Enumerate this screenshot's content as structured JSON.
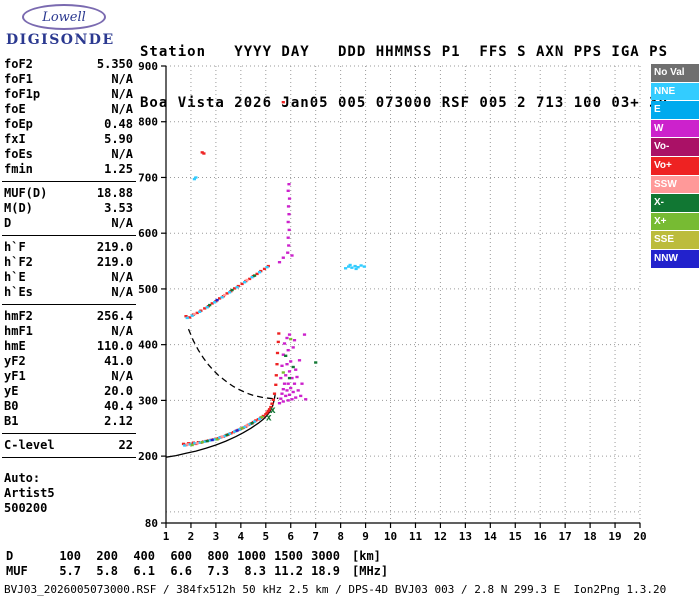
{
  "logo": {
    "brand": "Lowell",
    "product": "DIGISONDE"
  },
  "header": {
    "line1": "Station   YYYY DAY   DDD HHMMSS P1  FFS S AXN PPS IGA PS",
    "line2": "Boa Vista 2026 Jan05 005 073000 RSF 005 2 713 100 03+ 30"
  },
  "params": {
    "groups": [
      {
        "rows": [
          [
            "foF2",
            "5.350"
          ],
          [
            "foF1",
            "N/A"
          ],
          [
            "foF1p",
            "N/A"
          ],
          [
            "foE",
            "N/A"
          ],
          [
            "foEp",
            "0.48"
          ],
          [
            "fxI",
            "5.90"
          ],
          [
            "foEs",
            "N/A"
          ],
          [
            "fmin",
            "1.25"
          ]
        ]
      },
      {
        "rows": [
          [
            "MUF(D)",
            "18.88"
          ],
          [
            "M(D)",
            "3.53"
          ],
          [
            "D",
            "N/A"
          ]
        ]
      },
      {
        "rows": [
          [
            "h`F",
            "219.0"
          ],
          [
            "h`F2",
            "219.0"
          ],
          [
            "h`E",
            "N/A"
          ],
          [
            "h`Es",
            "N/A"
          ]
        ]
      },
      {
        "rows": [
          [
            "hmF2",
            "256.4"
          ],
          [
            "hmF1",
            "N/A"
          ],
          [
            "hmE",
            "110.0"
          ],
          [
            "yF2",
            "41.0"
          ],
          [
            "yF1",
            "N/A"
          ],
          [
            "yE",
            "20.0"
          ],
          [
            "B0",
            "40.4"
          ],
          [
            "B1",
            "2.12"
          ]
        ]
      },
      {
        "rows": [
          [
            "C-level",
            "22"
          ]
        ]
      },
      {
        "rows": [
          [
            "Auto:",
            ""
          ],
          [
            "Artist5",
            ""
          ],
          [
            "500200",
            ""
          ]
        ]
      }
    ]
  },
  "legend": [
    {
      "label": "No Val",
      "color": "#6f6f6f"
    },
    {
      "label": "NNE",
      "color": "#33ccff"
    },
    {
      "label": "E",
      "color": "#00aaee"
    },
    {
      "label": "W",
      "color": "#cc22cc"
    },
    {
      "label": "Vo-",
      "color": "#aa1166"
    },
    {
      "label": "Vo+",
      "color": "#ee2222"
    },
    {
      "label": "SSW",
      "color": "#ff9999"
    },
    {
      "label": "X-",
      "color": "#117733"
    },
    {
      "label": "X+",
      "color": "#77bb33"
    },
    {
      "label": "SSE",
      "color": "#bcbc3c"
    },
    {
      "label": "NNW",
      "color": "#2222cc"
    }
  ],
  "bottom_table": {
    "rows": [
      {
        "label": "D",
        "values": [
          "100",
          "200",
          "400",
          "600",
          "800",
          "1000",
          "1500",
          "3000"
        ],
        "unit": "[km]"
      },
      {
        "label": "MUF",
        "values": [
          "5.7",
          "5.8",
          "6.1",
          "6.6",
          "7.3",
          "8.3",
          "11.2",
          "18.9"
        ],
        "unit": "[MHz]"
      }
    ]
  },
  "footer": {
    "text": "BVJ03_2026005073000.RSF / 384fx512h 50 kHz 2.5 km / DPS-4D BVJ03 003 / 2.8 N 299.3 E  Ion2Png 1.3.20"
  },
  "chart_data": {
    "type": "scatter",
    "title": "Digisonde ionogram, Boa Vista, 2026 Jan05 073000",
    "xlabel": "[MHz]",
    "ylabel": "[km]",
    "xlim": [
      1,
      20
    ],
    "ylim": [
      80,
      900
    ],
    "xticks": [
      1,
      2,
      3,
      4,
      5,
      6,
      7,
      8,
      9,
      10,
      11,
      12,
      13,
      14,
      15,
      16,
      17,
      18,
      19,
      20
    ],
    "yticks": [
      80,
      200,
      300,
      400,
      500,
      600,
      700,
      800,
      900
    ],
    "ygrid": [
      100,
      200,
      300,
      400,
      500,
      600,
      700,
      800,
      900
    ],
    "grid": true,
    "legend_position": "right",
    "series": [
      {
        "name": "o-mode-echoes",
        "dir": "Vo+",
        "points": [
          [
            1.7,
            222
          ],
          [
            1.8,
            220
          ],
          [
            1.9,
            223
          ],
          [
            2.0,
            221
          ],
          [
            2.1,
            224
          ],
          [
            2.2,
            222
          ],
          [
            2.3,
            225
          ],
          [
            2.4,
            224
          ],
          [
            2.5,
            226
          ],
          [
            2.6,
            227
          ],
          [
            2.7,
            228
          ],
          [
            2.8,
            229
          ],
          [
            2.9,
            230
          ],
          [
            3.0,
            231
          ],
          [
            3.1,
            232
          ],
          [
            3.2,
            234
          ],
          [
            3.3,
            235
          ],
          [
            3.4,
            237
          ],
          [
            3.5,
            239
          ],
          [
            3.6,
            241
          ],
          [
            3.7,
            243
          ],
          [
            3.8,
            245
          ],
          [
            3.9,
            247
          ],
          [
            4.0,
            249
          ],
          [
            4.1,
            251
          ],
          [
            4.2,
            253
          ],
          [
            4.3,
            256
          ],
          [
            4.4,
            258
          ],
          [
            4.5,
            261
          ],
          [
            4.6,
            264
          ],
          [
            4.7,
            266
          ],
          [
            4.8,
            269
          ],
          [
            4.9,
            272
          ],
          [
            5.0,
            275
          ],
          [
            5.05,
            278
          ],
          [
            5.1,
            281
          ],
          [
            5.15,
            284
          ],
          [
            5.2,
            288
          ],
          [
            5.25,
            294
          ],
          [
            5.3,
            301
          ],
          [
            5.35,
            312
          ],
          [
            5.4,
            328
          ],
          [
            5.42,
            345
          ],
          [
            5.45,
            365
          ],
          [
            5.47,
            385
          ],
          [
            5.5,
            405
          ],
          [
            5.52,
            420
          ],
          [
            1.8,
            451
          ],
          [
            1.95,
            449
          ],
          [
            2.1,
            454
          ],
          [
            2.25,
            457
          ],
          [
            2.4,
            461
          ],
          [
            2.55,
            465
          ],
          [
            2.7,
            469
          ],
          [
            2.85,
            474
          ],
          [
            3.0,
            478
          ],
          [
            3.15,
            483
          ],
          [
            3.3,
            487
          ],
          [
            3.45,
            492
          ],
          [
            3.6,
            496
          ],
          [
            3.75,
            501
          ],
          [
            3.9,
            505
          ],
          [
            4.05,
            509
          ],
          [
            4.2,
            514
          ],
          [
            4.35,
            518
          ],
          [
            4.5,
            523
          ],
          [
            4.65,
            527
          ],
          [
            4.8,
            532
          ],
          [
            4.95,
            536
          ],
          [
            5.1,
            541
          ],
          [
            2.45,
            745
          ],
          [
            2.52,
            743
          ],
          [
            5.7,
            835
          ]
        ]
      },
      {
        "name": "nne-echoes",
        "dir": "NNE",
        "points": [
          [
            1.75,
            219
          ],
          [
            1.95,
            221
          ],
          [
            2.15,
            223
          ],
          [
            2.35,
            224
          ],
          [
            2.55,
            226
          ],
          [
            2.75,
            228
          ],
          [
            2.95,
            230
          ],
          [
            3.15,
            233
          ],
          [
            3.35,
            236
          ],
          [
            3.55,
            240
          ],
          [
            3.75,
            244
          ],
          [
            3.95,
            248
          ],
          [
            4.15,
            252
          ],
          [
            4.35,
            257
          ],
          [
            4.55,
            262
          ],
          [
            4.75,
            267
          ],
          [
            1.85,
            448
          ],
          [
            2.05,
            452
          ],
          [
            2.35,
            459
          ],
          [
            2.65,
            467
          ],
          [
            2.95,
            476
          ],
          [
            3.25,
            485
          ],
          [
            3.55,
            494
          ],
          [
            3.85,
            503
          ],
          [
            4.15,
            512
          ],
          [
            4.45,
            521
          ],
          [
            4.75,
            530
          ],
          [
            5.05,
            539
          ],
          [
            8.2,
            537
          ],
          [
            8.32,
            540
          ],
          [
            8.45,
            538
          ],
          [
            8.58,
            541
          ],
          [
            8.7,
            539
          ],
          [
            8.82,
            542
          ],
          [
            8.95,
            540
          ],
          [
            8.38,
            543
          ],
          [
            8.62,
            536
          ],
          [
            2.2,
            700
          ],
          [
            2.14,
            697
          ]
        ]
      },
      {
        "name": "spread-f-x-mode",
        "dir": "W",
        "points": [
          [
            5.55,
            295
          ],
          [
            5.6,
            303
          ],
          [
            5.6,
            340
          ],
          [
            5.65,
            312
          ],
          [
            5.65,
            362
          ],
          [
            5.7,
            298
          ],
          [
            5.7,
            320
          ],
          [
            5.7,
            382
          ],
          [
            5.75,
            330
          ],
          [
            5.75,
            402
          ],
          [
            5.8,
            308
          ],
          [
            5.8,
            345
          ],
          [
            5.85,
            318
          ],
          [
            5.85,
            365
          ],
          [
            5.85,
            412
          ],
          [
            5.9,
            300
          ],
          [
            5.9,
            330
          ],
          [
            5.9,
            390
          ],
          [
            5.95,
            310
          ],
          [
            5.95,
            352
          ],
          [
            5.95,
            418
          ],
          [
            6.0,
            322
          ],
          [
            6.0,
            370
          ],
          [
            6.05,
            302
          ],
          [
            6.05,
            340
          ],
          [
            6.1,
            315
          ],
          [
            6.1,
            395
          ],
          [
            6.15,
            330
          ],
          [
            6.15,
            408
          ],
          [
            6.2,
            305
          ],
          [
            6.2,
            355
          ],
          [
            6.25,
            342
          ],
          [
            6.3,
            318
          ],
          [
            6.35,
            372
          ],
          [
            6.4,
            308
          ],
          [
            6.45,
            330
          ],
          [
            6.55,
            418
          ],
          [
            6.6,
            302
          ],
          [
            5.88,
            565
          ],
          [
            5.92,
            578
          ],
          [
            5.9,
            592
          ],
          [
            5.94,
            606
          ],
          [
            5.9,
            620
          ],
          [
            5.93,
            634
          ],
          [
            5.91,
            648
          ],
          [
            5.95,
            662
          ],
          [
            5.9,
            676
          ],
          [
            5.93,
            688
          ],
          [
            5.55,
            548
          ],
          [
            5.7,
            556
          ],
          [
            6.05,
            560
          ]
        ]
      },
      {
        "name": "x-minus-echoes",
        "dir": "X-",
        "points": [
          [
            2.65,
            227
          ],
          [
            3.45,
            238
          ],
          [
            4.45,
            259
          ],
          [
            2.75,
            471
          ],
          [
            3.65,
            498
          ],
          [
            4.55,
            524
          ],
          [
            5.8,
            380
          ],
          [
            5.95,
            340
          ],
          [
            6.1,
            360
          ],
          [
            7.0,
            368
          ]
        ]
      },
      {
        "name": "x-plus-echoes",
        "dir": "X+",
        "points": [
          [
            2.05,
            220
          ],
          [
            2.45,
            225
          ],
          [
            3.05,
            230
          ],
          [
            4.05,
            250
          ],
          [
            4.85,
            270
          ],
          [
            5.7,
            350
          ],
          [
            6.0,
            410
          ]
        ]
      },
      {
        "name": "ssw-echoes",
        "dir": "SSW",
        "points": [
          [
            1.85,
            221
          ],
          [
            2.25,
            223
          ],
          [
            3.25,
            235
          ],
          [
            4.25,
            255
          ],
          [
            2.15,
            455
          ],
          [
            3.35,
            489
          ],
          [
            4.25,
            516
          ]
        ]
      },
      {
        "name": "nnw-echoes",
        "dir": "NNW",
        "points": [
          [
            2.85,
            229
          ],
          [
            3.85,
            246
          ],
          [
            3.05,
            480
          ]
        ]
      }
    ],
    "curves": [
      {
        "name": "true-height-profile",
        "style": "solid",
        "color": "#000000",
        "points": [
          [
            1.0,
            198
          ],
          [
            1.4,
            201
          ],
          [
            1.8,
            205
          ],
          [
            2.2,
            209
          ],
          [
            2.6,
            214
          ],
          [
            3.0,
            220
          ],
          [
            3.4,
            227
          ],
          [
            3.8,
            235
          ],
          [
            4.1,
            242
          ],
          [
            4.4,
            250
          ],
          [
            4.7,
            259
          ],
          [
            4.9,
            266
          ],
          [
            5.05,
            273
          ],
          [
            5.18,
            281
          ],
          [
            5.28,
            291
          ],
          [
            5.34,
            302
          ],
          [
            5.38,
            312
          ]
        ]
      },
      {
        "name": "muf-transmission-curve",
        "style": "dashed",
        "color": "#000000",
        "points": [
          [
            1.9,
            428
          ],
          [
            2.1,
            407
          ],
          [
            2.3,
            390
          ],
          [
            2.5,
            376
          ],
          [
            2.7,
            364
          ],
          [
            2.9,
            354
          ],
          [
            3.1,
            345
          ],
          [
            3.3,
            338
          ],
          [
            3.5,
            331
          ],
          [
            3.7,
            325
          ],
          [
            3.9,
            320
          ],
          [
            4.1,
            316
          ],
          [
            4.3,
            312
          ],
          [
            4.5,
            309
          ],
          [
            4.7,
            307
          ],
          [
            4.9,
            305
          ],
          [
            5.1,
            304
          ],
          [
            5.3,
            303
          ],
          [
            5.5,
            304
          ]
        ]
      }
    ],
    "markers": [
      {
        "type": "x",
        "color": "#117733",
        "points": [
          [
            5.12,
            270
          ],
          [
            5.28,
            284
          ]
        ]
      }
    ]
  }
}
